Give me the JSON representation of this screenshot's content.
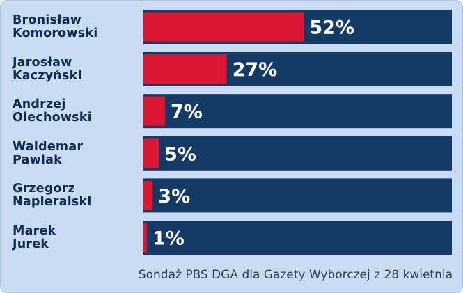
{
  "chart_data": {
    "type": "bar",
    "orientation": "horizontal",
    "categories": [
      [
        "Bronisław",
        "Komorowski"
      ],
      [
        "Jarosław",
        "Kaczyński"
      ],
      [
        "Andrzej",
        "Olechowski"
      ],
      [
        "Waldemar",
        "Pawlak"
      ],
      [
        "Grzegorz",
        "Napieralski"
      ],
      [
        "Marek",
        "Jurek"
      ]
    ],
    "values": [
      52,
      27,
      7,
      5,
      3,
      1
    ],
    "value_labels": [
      "52%",
      "27%",
      "7%",
      "5%",
      "3%",
      "1%"
    ],
    "xlim": [
      0,
      100
    ],
    "caption": "Sondaż PBS DGA dla Gazety Wyborczej z 28 kwietnia",
    "grid": false,
    "legend": "none"
  },
  "colors": {
    "panel": "#c9dcf2",
    "track": "#143a66",
    "bar": "#dc1731",
    "label_text": "#102a50",
    "value_text": "#ffffff"
  }
}
